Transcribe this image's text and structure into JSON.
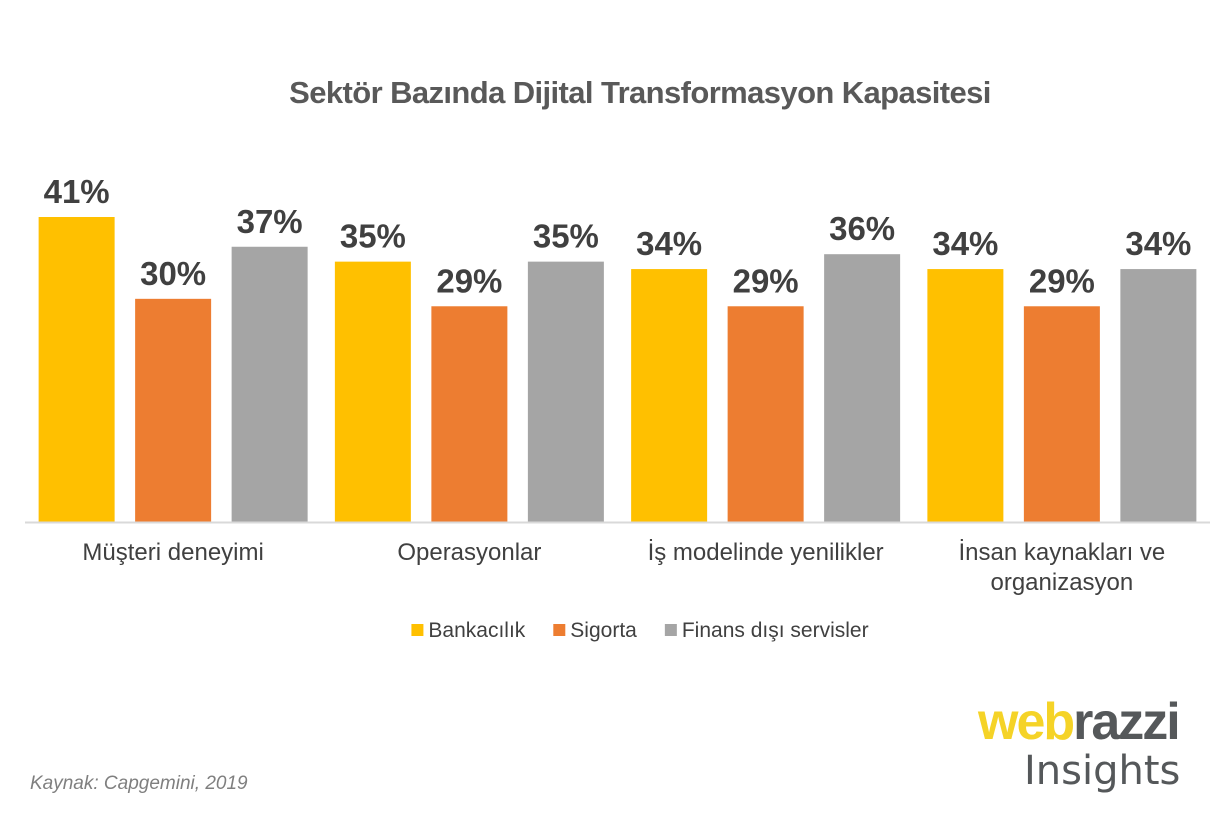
{
  "chart_data": {
    "type": "bar",
    "title": "Sektör Bazında Dijital Transformasyon Kapasitesi",
    "xlabel": "",
    "ylabel": "",
    "ylim": [
      0,
      41
    ],
    "grid": false,
    "legend_position": "bottom",
    "value_format": "{v}%",
    "categories": [
      [
        "Müşteri deneyimi"
      ],
      [
        "Operasyonlar"
      ],
      [
        "İş modelinde yenilikler"
      ],
      [
        "İnsan kaynakları ve",
        "organizasyon"
      ]
    ],
    "series": [
      {
        "name": "Bankacılık",
        "color": "#ffc000",
        "values": [
          41,
          35,
          34,
          34
        ]
      },
      {
        "name": "Sigorta",
        "color": "#ed7d31",
        "values": [
          30,
          29,
          29,
          29
        ]
      },
      {
        "name": "Finans dışı servisler",
        "color": "#a5a5a5",
        "values": [
          37,
          35,
          36,
          34
        ]
      }
    ]
  },
  "footer": {
    "source": "Kaynak: Capgemini, 2019"
  },
  "logo": {
    "part1": "web",
    "part2": "razzi",
    "subtitle": "Insights"
  }
}
